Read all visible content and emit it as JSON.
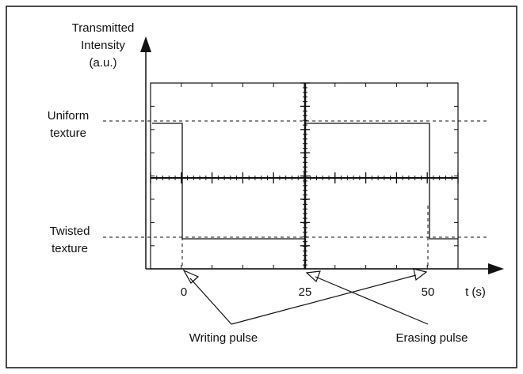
{
  "y_axis": {
    "label": [
      "Transmitted",
      "Intensity",
      "(a.u.)"
    ]
  },
  "levels": {
    "uniform": [
      "Uniform",
      "texture"
    ],
    "twisted": [
      "Twisted",
      "texture"
    ]
  },
  "x_axis": {
    "ticks": [
      "0",
      "25",
      "50"
    ],
    "label": "t (s)"
  },
  "pulses": {
    "writing": "Writing pulse",
    "erasing": "Erasing pulse"
  }
}
